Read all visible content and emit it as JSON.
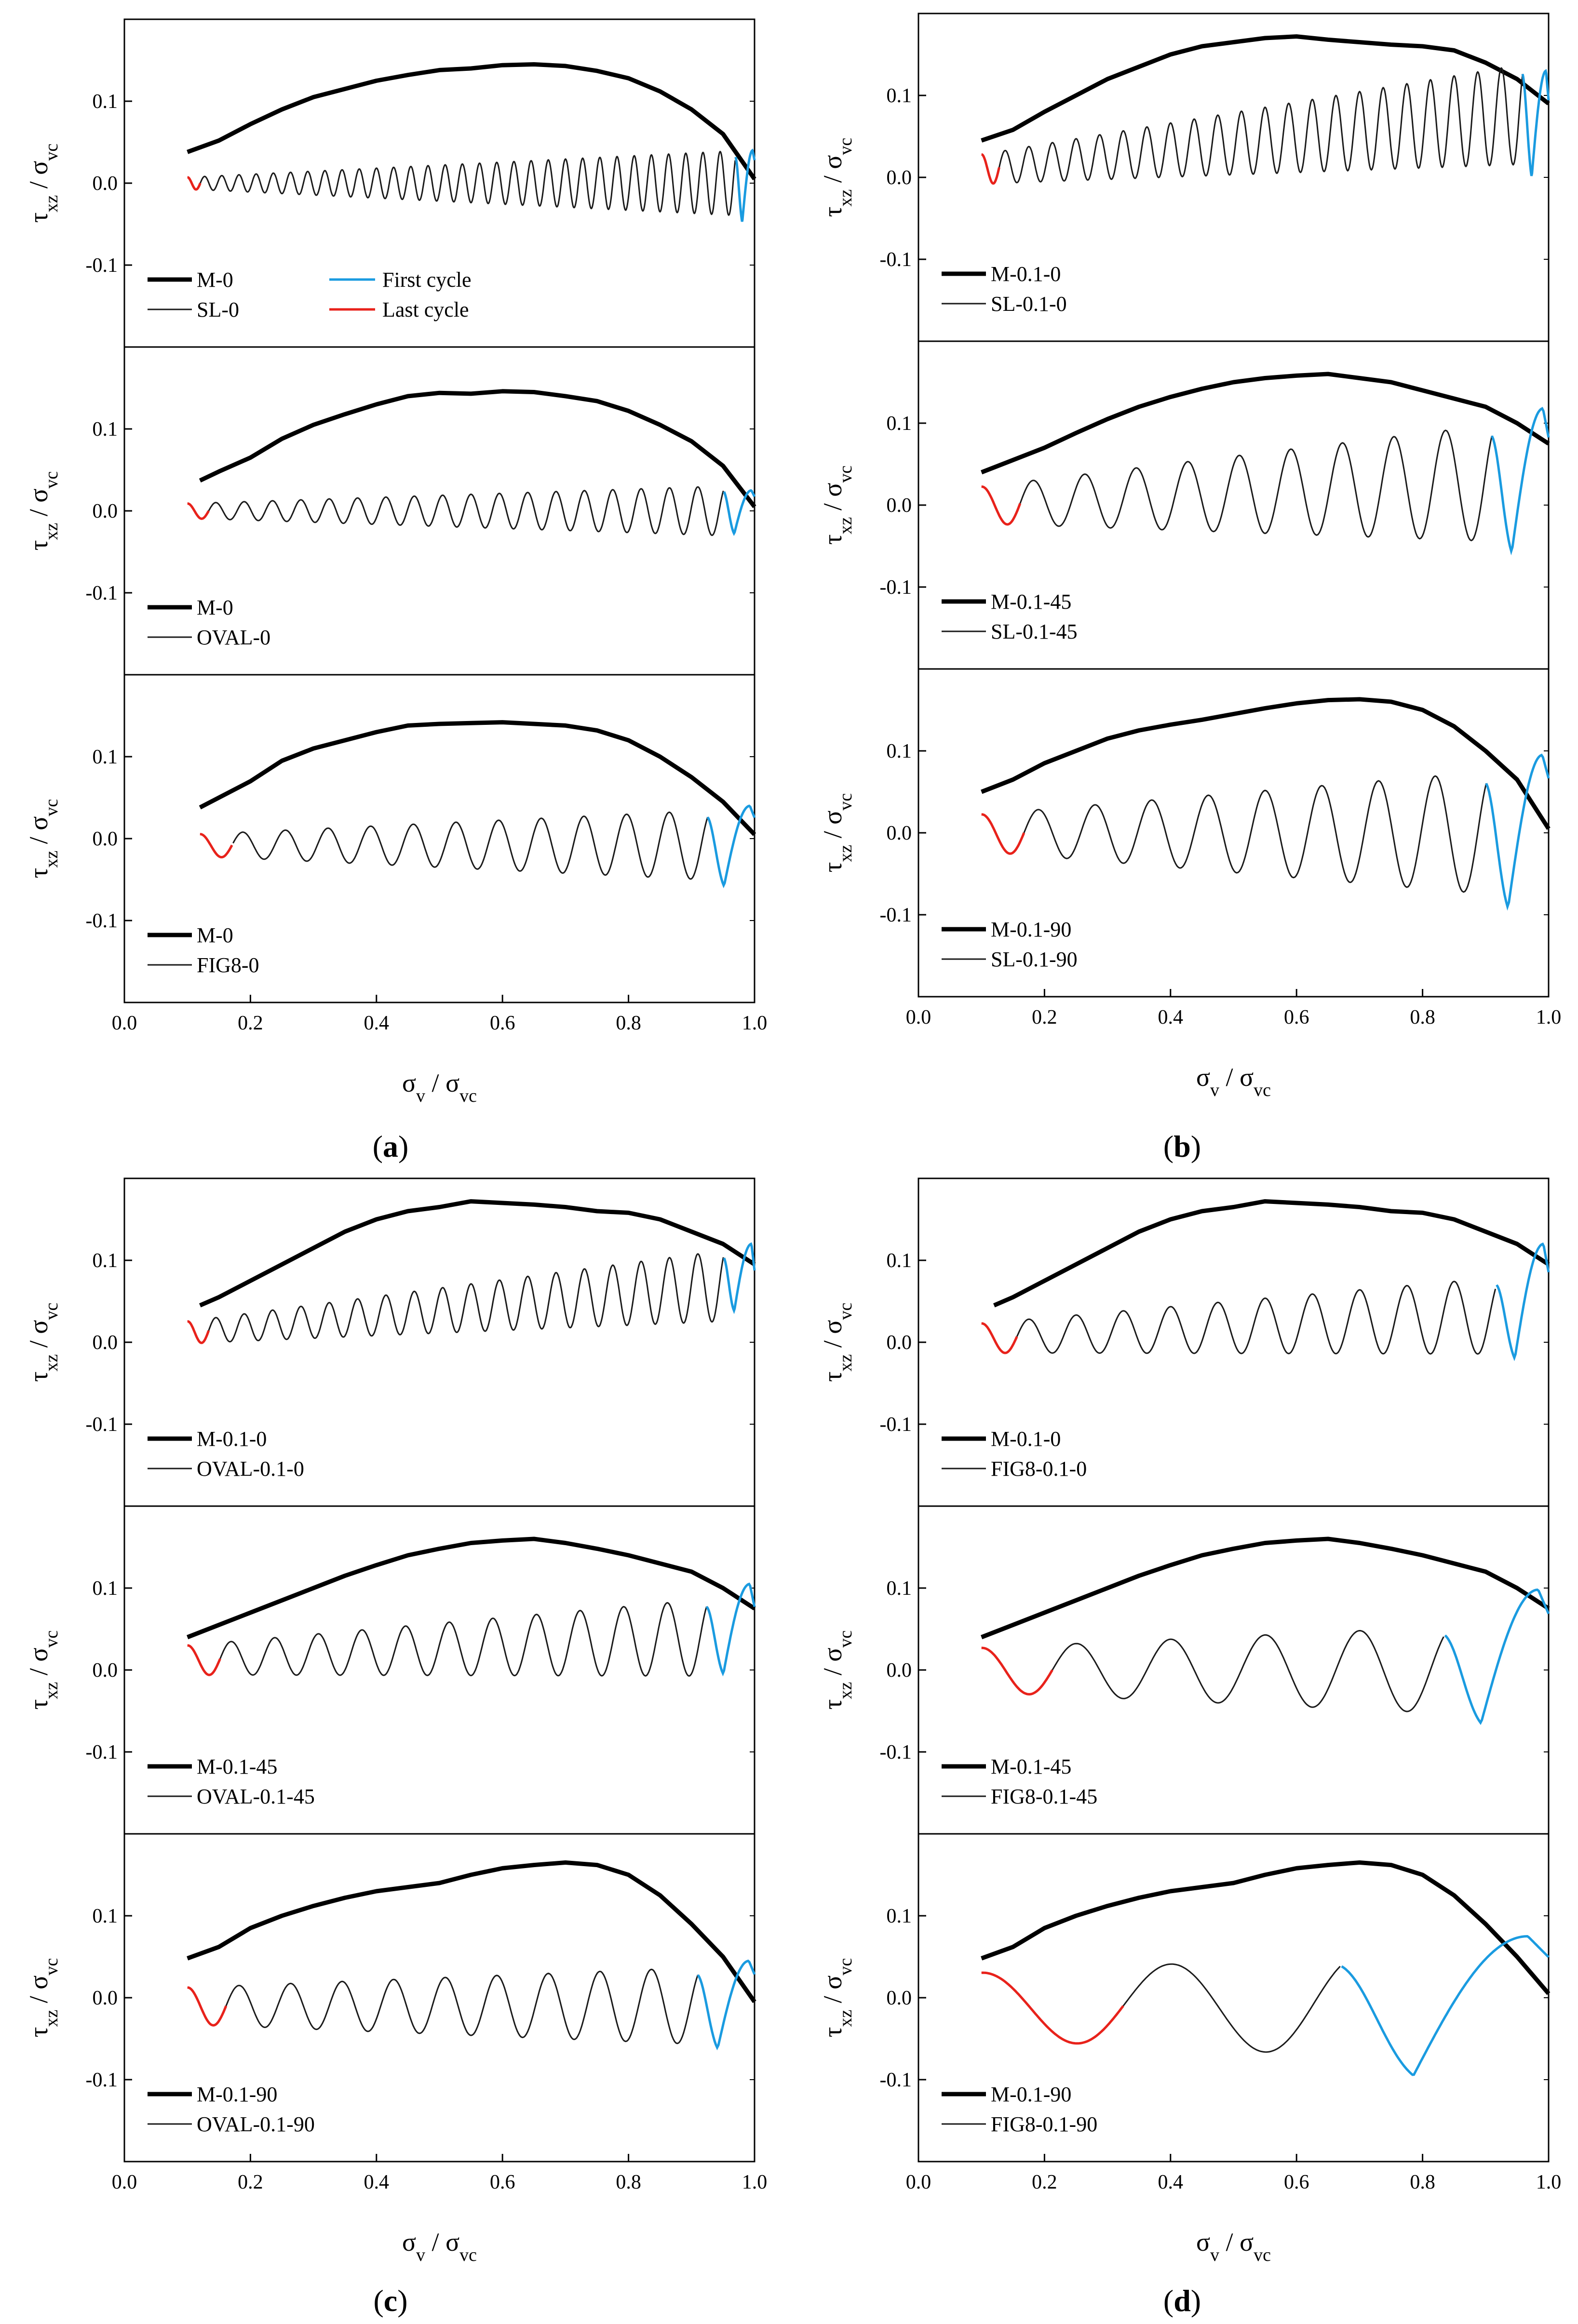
{
  "figure": {
    "captions": [
      {
        "open": "(",
        "letter": "a",
        "close": ")"
      },
      {
        "open": "(",
        "letter": "b",
        "close": ")"
      },
      {
        "open": "(",
        "letter": "c",
        "close": ")"
      },
      {
        "open": "(",
        "letter": "d",
        "close": ")"
      }
    ]
  },
  "colors": {
    "monotonic": "#000000",
    "cyclic": "#1a1a1a",
    "first_cycle": "#1a9be0",
    "last_cycle": "#e8221b",
    "axis": "#000000"
  },
  "axes": {
    "ylabel": {
      "main": "τ",
      "sub": "xz",
      "sep": " / ",
      "main2": "σ",
      "sub2": "vc"
    },
    "xlabel": {
      "main": "σ",
      "sub": "v",
      "sep": " / ",
      "main2": "σ",
      "sub2": "vc"
    },
    "xlim": [
      0.0,
      1.0
    ],
    "ylim": [
      -0.2,
      0.2
    ],
    "xticks": [
      "0.0",
      "0.2",
      "0.4",
      "0.6",
      "0.8",
      "1.0"
    ],
    "yticks": [
      "0.1",
      "0.0",
      "-0.1"
    ],
    "ytick_values": [
      0.1,
      0.0,
      -0.1
    ]
  },
  "legend_common": {
    "first_cycle": "First cycle",
    "last_cycle": "Last cycle"
  },
  "chart_data": [
    {
      "type": "line",
      "group": "a",
      "row": 0,
      "monotonic_label": "M-0",
      "cyclic_label": "SL-0",
      "show_cycle_legend": true,
      "monotonic": {
        "x": [
          0.1,
          0.15,
          0.2,
          0.25,
          0.3,
          0.35,
          0.4,
          0.45,
          0.5,
          0.55,
          0.6,
          0.65,
          0.7,
          0.75,
          0.8,
          0.85,
          0.9,
          0.95,
          1.0
        ],
        "y": [
          0.038,
          0.052,
          0.072,
          0.09,
          0.105,
          0.115,
          0.125,
          0.132,
          0.138,
          0.14,
          0.144,
          0.145,
          0.143,
          0.137,
          0.128,
          0.112,
          0.09,
          0.06,
          0.005
        ]
      },
      "cyclic": {
        "x_start": 0.1,
        "x_end": 1.0,
        "n_cycles": 33,
        "amp_start": 0.008,
        "amp_end": 0.045,
        "center": 0.0,
        "first_cycle_min": -0.048,
        "first_cycle_peak": 0.04
      }
    },
    {
      "type": "line",
      "group": "a",
      "row": 1,
      "monotonic_label": "M-0",
      "cyclic_label": "OVAL-0",
      "show_cycle_legend": false,
      "monotonic": {
        "x": [
          0.12,
          0.15,
          0.2,
          0.25,
          0.3,
          0.35,
          0.4,
          0.45,
          0.5,
          0.55,
          0.6,
          0.65,
          0.7,
          0.75,
          0.8,
          0.85,
          0.9,
          0.95,
          1.0
        ],
        "y": [
          0.037,
          0.048,
          0.065,
          0.088,
          0.105,
          0.118,
          0.13,
          0.14,
          0.144,
          0.143,
          0.146,
          0.145,
          0.14,
          0.134,
          0.122,
          0.105,
          0.085,
          0.055,
          0.005
        ]
      },
      "cyclic": {
        "x_start": 0.1,
        "x_end": 1.0,
        "n_cycles": 20,
        "amp_start": 0.01,
        "amp_end": 0.035,
        "center": 0.0,
        "first_cycle_min": -0.028,
        "first_cycle_peak": 0.025
      }
    },
    {
      "type": "line",
      "group": "a",
      "row": 2,
      "monotonic_label": "M-0",
      "cyclic_label": "FIG8-0",
      "show_cycle_legend": false,
      "monotonic": {
        "x": [
          0.12,
          0.15,
          0.2,
          0.25,
          0.3,
          0.35,
          0.4,
          0.45,
          0.5,
          0.55,
          0.6,
          0.65,
          0.7,
          0.75,
          0.8,
          0.85,
          0.9,
          0.95,
          1.0
        ],
        "y": [
          0.038,
          0.05,
          0.07,
          0.095,
          0.11,
          0.12,
          0.13,
          0.138,
          0.14,
          0.141,
          0.142,
          0.14,
          0.138,
          0.132,
          0.12,
          0.1,
          0.075,
          0.045,
          0.005
        ]
      },
      "cyclic": {
        "x_start": 0.12,
        "x_end": 1.0,
        "n_cycles": 13,
        "amp_start": 0.015,
        "amp_end": 0.05,
        "center": -0.008,
        "first_cycle_min": -0.058,
        "first_cycle_peak": 0.04
      }
    },
    {
      "type": "line",
      "group": "b",
      "row": 0,
      "monotonic_label": "M-0.1-0",
      "cyclic_label": "SL-0.1-0",
      "show_cycle_legend": false,
      "monotonic": {
        "x": [
          0.1,
          0.15,
          0.2,
          0.25,
          0.3,
          0.35,
          0.4,
          0.45,
          0.5,
          0.55,
          0.6,
          0.65,
          0.7,
          0.75,
          0.8,
          0.85,
          0.9,
          0.95,
          1.0
        ],
        "y": [
          0.045,
          0.058,
          0.08,
          0.1,
          0.12,
          0.135,
          0.15,
          0.16,
          0.165,
          0.17,
          0.172,
          0.168,
          0.165,
          0.162,
          0.16,
          0.155,
          0.14,
          0.12,
          0.09
        ]
      },
      "cyclic": {
        "x_start": 0.1,
        "x_end": 1.0,
        "n_cycles": 24,
        "amp_start": 0.02,
        "amp_end": 0.07,
        "center": 0.01,
        "first_cycle_min": 0.0,
        "first_cycle_peak": 0.13,
        "rising_trend": 0.07
      }
    },
    {
      "type": "line",
      "group": "b",
      "row": 1,
      "monotonic_label": "M-0.1-45",
      "cyclic_label": "SL-0.1-45",
      "show_cycle_legend": false,
      "monotonic": {
        "x": [
          0.1,
          0.15,
          0.2,
          0.25,
          0.3,
          0.35,
          0.4,
          0.45,
          0.5,
          0.55,
          0.6,
          0.65,
          0.7,
          0.75,
          0.8,
          0.85,
          0.9,
          0.95,
          1.0
        ],
        "y": [
          0.04,
          0.055,
          0.07,
          0.088,
          0.105,
          0.12,
          0.132,
          0.142,
          0.15,
          0.155,
          0.158,
          0.16,
          0.155,
          0.15,
          0.14,
          0.13,
          0.12,
          0.1,
          0.075
        ]
      },
      "cyclic": {
        "x_start": 0.1,
        "x_end": 1.0,
        "n_cycles": 11,
        "amp_start": 0.025,
        "amp_end": 0.085,
        "center": 0.0,
        "first_cycle_min": -0.058,
        "first_cycle_peak": 0.118,
        "rising_trend": 0.03
      }
    },
    {
      "type": "line",
      "group": "b",
      "row": 2,
      "monotonic_label": "M-0.1-90",
      "cyclic_label": "SL-0.1-90",
      "show_cycle_legend": false,
      "monotonic": {
        "x": [
          0.1,
          0.15,
          0.2,
          0.25,
          0.3,
          0.35,
          0.4,
          0.45,
          0.5,
          0.55,
          0.6,
          0.65,
          0.7,
          0.75,
          0.8,
          0.85,
          0.9,
          0.95,
          1.0
        ],
        "y": [
          0.05,
          0.065,
          0.085,
          0.1,
          0.115,
          0.125,
          0.132,
          0.138,
          0.145,
          0.152,
          0.158,
          0.162,
          0.163,
          0.16,
          0.15,
          0.13,
          0.1,
          0.065,
          0.005
        ]
      },
      "cyclic": {
        "x_start": 0.1,
        "x_end": 1.0,
        "n_cycles": 10,
        "amp_start": 0.025,
        "amp_end": 0.09,
        "center": 0.0,
        "first_cycle_min": -0.092,
        "first_cycle_peak": 0.095,
        "rising_trend": 0.0
      }
    },
    {
      "type": "line",
      "group": "c",
      "row": 0,
      "monotonic_label": "M-0.1-0",
      "cyclic_label": "OVAL-0.1-0",
      "show_cycle_legend": false,
      "monotonic": {
        "x": [
          0.12,
          0.15,
          0.2,
          0.25,
          0.3,
          0.35,
          0.4,
          0.45,
          0.5,
          0.55,
          0.6,
          0.65,
          0.7,
          0.75,
          0.8,
          0.85,
          0.9,
          0.95,
          1.0
        ],
        "y": [
          0.045,
          0.055,
          0.075,
          0.095,
          0.115,
          0.135,
          0.15,
          0.16,
          0.165,
          0.172,
          0.17,
          0.168,
          0.165,
          0.16,
          0.158,
          0.15,
          0.135,
          0.12,
          0.095
        ]
      },
      "cyclic": {
        "x_start": 0.1,
        "x_end": 1.0,
        "n_cycles": 20,
        "amp_start": 0.015,
        "amp_end": 0.05,
        "center": 0.012,
        "first_cycle_min": 0.038,
        "first_cycle_peak": 0.12,
        "rising_trend": 0.06
      }
    },
    {
      "type": "line",
      "group": "c",
      "row": 1,
      "monotonic_label": "M-0.1-45",
      "cyclic_label": "OVAL-0.1-45",
      "show_cycle_legend": false,
      "monotonic": {
        "x": [
          0.1,
          0.15,
          0.2,
          0.25,
          0.3,
          0.35,
          0.4,
          0.45,
          0.5,
          0.55,
          0.6,
          0.65,
          0.7,
          0.75,
          0.8,
          0.85,
          0.9,
          0.95,
          1.0
        ],
        "y": [
          0.04,
          0.055,
          0.07,
          0.085,
          0.1,
          0.115,
          0.128,
          0.14,
          0.148,
          0.155,
          0.158,
          0.16,
          0.155,
          0.148,
          0.14,
          0.13,
          0.12,
          0.1,
          0.075
        ]
      },
      "cyclic": {
        "x_start": 0.1,
        "x_end": 1.0,
        "n_cycles": 13,
        "amp_start": 0.02,
        "amp_end": 0.055,
        "center": 0.012,
        "first_cycle_min": -0.005,
        "first_cycle_peak": 0.105,
        "rising_trend": 0.03
      }
    },
    {
      "type": "line",
      "group": "c",
      "row": 2,
      "monotonic_label": "M-0.1-90",
      "cyclic_label": "OVAL-0.1-90",
      "show_cycle_legend": false,
      "monotonic": {
        "x": [
          0.1,
          0.15,
          0.2,
          0.25,
          0.3,
          0.35,
          0.4,
          0.45,
          0.5,
          0.55,
          0.6,
          0.65,
          0.7,
          0.75,
          0.8,
          0.85,
          0.9,
          0.95,
          1.0
        ],
        "y": [
          0.048,
          0.062,
          0.085,
          0.1,
          0.112,
          0.122,
          0.13,
          0.135,
          0.14,
          0.15,
          0.158,
          0.162,
          0.165,
          0.162,
          0.15,
          0.125,
          0.09,
          0.05,
          -0.005
        ]
      },
      "cyclic": {
        "x_start": 0.1,
        "x_end": 1.0,
        "n_cycles": 11,
        "amp_start": 0.025,
        "amp_end": 0.055,
        "center": -0.01,
        "first_cycle_min": -0.062,
        "first_cycle_peak": 0.045,
        "rising_trend": 0.0
      }
    },
    {
      "type": "line",
      "group": "d",
      "row": 0,
      "monotonic_label": "M-0.1-0",
      "cyclic_label": "FIG8-0.1-0",
      "show_cycle_legend": false,
      "monotonic": {
        "x": [
          0.12,
          0.15,
          0.2,
          0.25,
          0.3,
          0.35,
          0.4,
          0.45,
          0.5,
          0.55,
          0.6,
          0.65,
          0.7,
          0.75,
          0.8,
          0.85,
          0.9,
          0.95,
          1.0
        ],
        "y": [
          0.045,
          0.055,
          0.075,
          0.095,
          0.115,
          0.135,
          0.15,
          0.16,
          0.165,
          0.172,
          0.17,
          0.168,
          0.165,
          0.16,
          0.158,
          0.15,
          0.135,
          0.12,
          0.095
        ]
      },
      "cyclic": {
        "x_start": 0.1,
        "x_end": 1.0,
        "n_cycles": 12,
        "amp_start": 0.02,
        "amp_end": 0.055,
        "center": 0.005,
        "first_cycle_min": -0.02,
        "first_cycle_peak": 0.12,
        "rising_trend": 0.03
      }
    },
    {
      "type": "line",
      "group": "d",
      "row": 1,
      "monotonic_label": "M-0.1-45",
      "cyclic_label": "FIG8-0.1-45",
      "show_cycle_legend": false,
      "monotonic": {
        "x": [
          0.1,
          0.15,
          0.2,
          0.25,
          0.3,
          0.35,
          0.4,
          0.45,
          0.5,
          0.55,
          0.6,
          0.65,
          0.7,
          0.75,
          0.8,
          0.85,
          0.9,
          0.95,
          1.0
        ],
        "y": [
          0.04,
          0.055,
          0.07,
          0.085,
          0.1,
          0.115,
          0.128,
          0.14,
          0.148,
          0.155,
          0.158,
          0.16,
          0.155,
          0.148,
          0.14,
          0.13,
          0.12,
          0.1,
          0.075
        ]
      },
      "cyclic": {
        "x_start": 0.1,
        "x_end": 1.0,
        "n_cycles": 6,
        "amp_start": 0.03,
        "amp_end": 0.065,
        "center": 0.0,
        "first_cycle_min": -0.065,
        "first_cycle_peak": 0.098,
        "rising_trend": 0.0
      }
    },
    {
      "type": "line",
      "group": "d",
      "row": 2,
      "monotonic_label": "M-0.1-90",
      "cyclic_label": "FIG8-0.1-90",
      "show_cycle_legend": false,
      "monotonic": {
        "x": [
          0.1,
          0.15,
          0.2,
          0.25,
          0.3,
          0.35,
          0.4,
          0.45,
          0.5,
          0.55,
          0.6,
          0.65,
          0.7,
          0.75,
          0.8,
          0.85,
          0.9,
          0.95,
          1.0
        ],
        "y": [
          0.048,
          0.062,
          0.085,
          0.1,
          0.112,
          0.122,
          0.13,
          0.135,
          0.14,
          0.15,
          0.158,
          0.162,
          0.165,
          0.162,
          0.15,
          0.125,
          0.09,
          0.05,
          0.005
        ]
      },
      "cyclic": {
        "x_start": 0.1,
        "x_end": 1.0,
        "n_cycles": 3,
        "amp_start": 0.045,
        "amp_end": 0.08,
        "center": -0.01,
        "first_cycle_min": -0.095,
        "first_cycle_peak": 0.075,
        "rising_trend": 0.0
      }
    }
  ]
}
